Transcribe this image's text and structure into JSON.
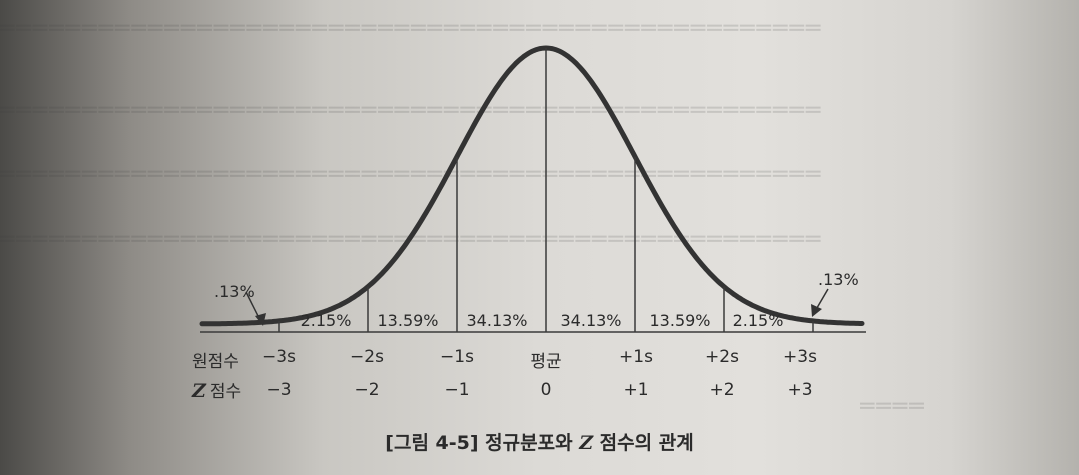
{
  "figure": {
    "tail_left": ".13%",
    "tail_right": ".13%",
    "segments": [
      "2.15%",
      "13.59%",
      "34.13%",
      "34.13%",
      "13.59%",
      "2.15%"
    ],
    "raw_row_label": "원점수",
    "raw_ticks": [
      "−3s",
      "−2s",
      "−1s",
      "평균",
      "+1s",
      "+2s",
      "+3s"
    ],
    "z_symbol": "Z",
    "z_row_label": "점수",
    "z_ticks": [
      "−3",
      "−2",
      "−1",
      "0",
      "+1",
      "+2",
      "+3"
    ]
  },
  "caption": {
    "prefix": "[그림 4-5] 정규분포와 ",
    "symbol": "Z",
    "suffix": " 점수의 관계"
  }
}
